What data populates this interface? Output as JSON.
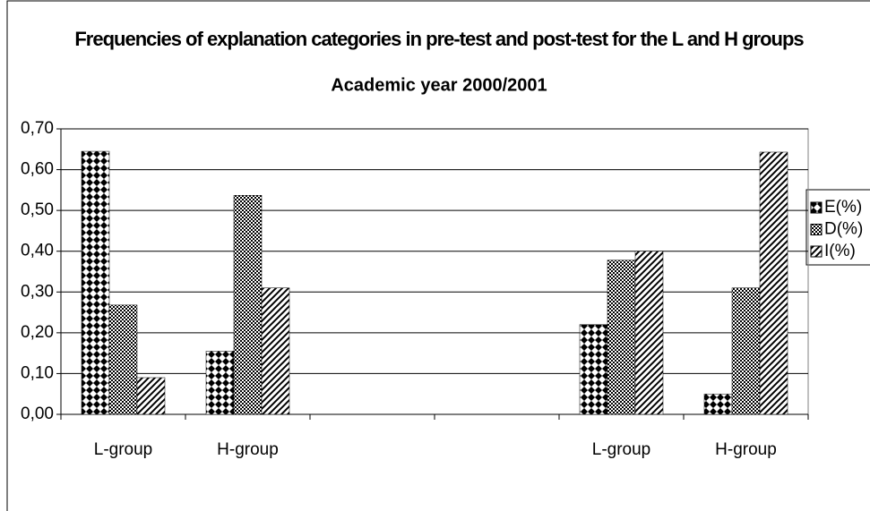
{
  "chart_data": {
    "type": "bar",
    "title": "Frequencies of explanation categories in pre-test and post-test for the L and H groups",
    "subtitle": "Academic year 2000/2001",
    "categories": [
      "L-group",
      "H-group",
      null,
      null,
      "L-group",
      "H-group"
    ],
    "series": [
      {
        "name": "E(%)",
        "color": "#000000",
        "values": [
          0.645,
          0.155,
          null,
          null,
          0.22,
          0.05
        ]
      },
      {
        "name": "D(%)",
        "color": "#000000",
        "values": [
          0.268,
          0.537,
          null,
          null,
          0.378,
          0.31
        ]
      },
      {
        "name": "I(%)",
        "color": "#000000",
        "values": [
          0.09,
          0.31,
          null,
          null,
          0.4,
          0.643
        ]
      }
    ],
    "ylim": [
      0,
      0.7
    ],
    "yticks": [
      {
        "value": 0,
        "label": "0,00"
      },
      {
        "value": 0.1,
        "label": "0,10"
      },
      {
        "value": 0.2,
        "label": "0,20"
      },
      {
        "value": 0.3,
        "label": "0,30"
      },
      {
        "value": 0.4,
        "label": "0,40"
      },
      {
        "value": 0.5,
        "label": "0,50"
      },
      {
        "value": 0.6,
        "label": "0,60"
      },
      {
        "value": 0.7,
        "label": "0,70"
      }
    ],
    "grid": true,
    "legend": "right"
  }
}
